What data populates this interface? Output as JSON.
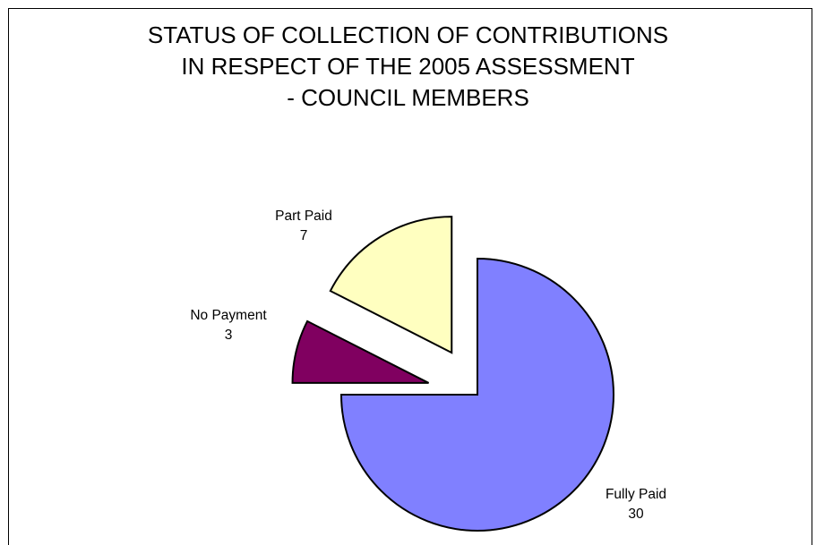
{
  "chart_data": {
    "type": "pie",
    "title": "STATUS OF COLLECTION OF CONTRIBUTIONS\nIN RESPECT OF THE 2005 ASSESSMENT\n- COUNCIL MEMBERS",
    "slices": [
      {
        "label": "Fully Paid",
        "value": 30,
        "color": "#8080ff"
      },
      {
        "label": "No Payment",
        "value": 3,
        "color": "#800060"
      },
      {
        "label": "Part Paid",
        "value": 7,
        "color": "#ffffc0"
      }
    ],
    "exploded": true,
    "legend": "none"
  }
}
